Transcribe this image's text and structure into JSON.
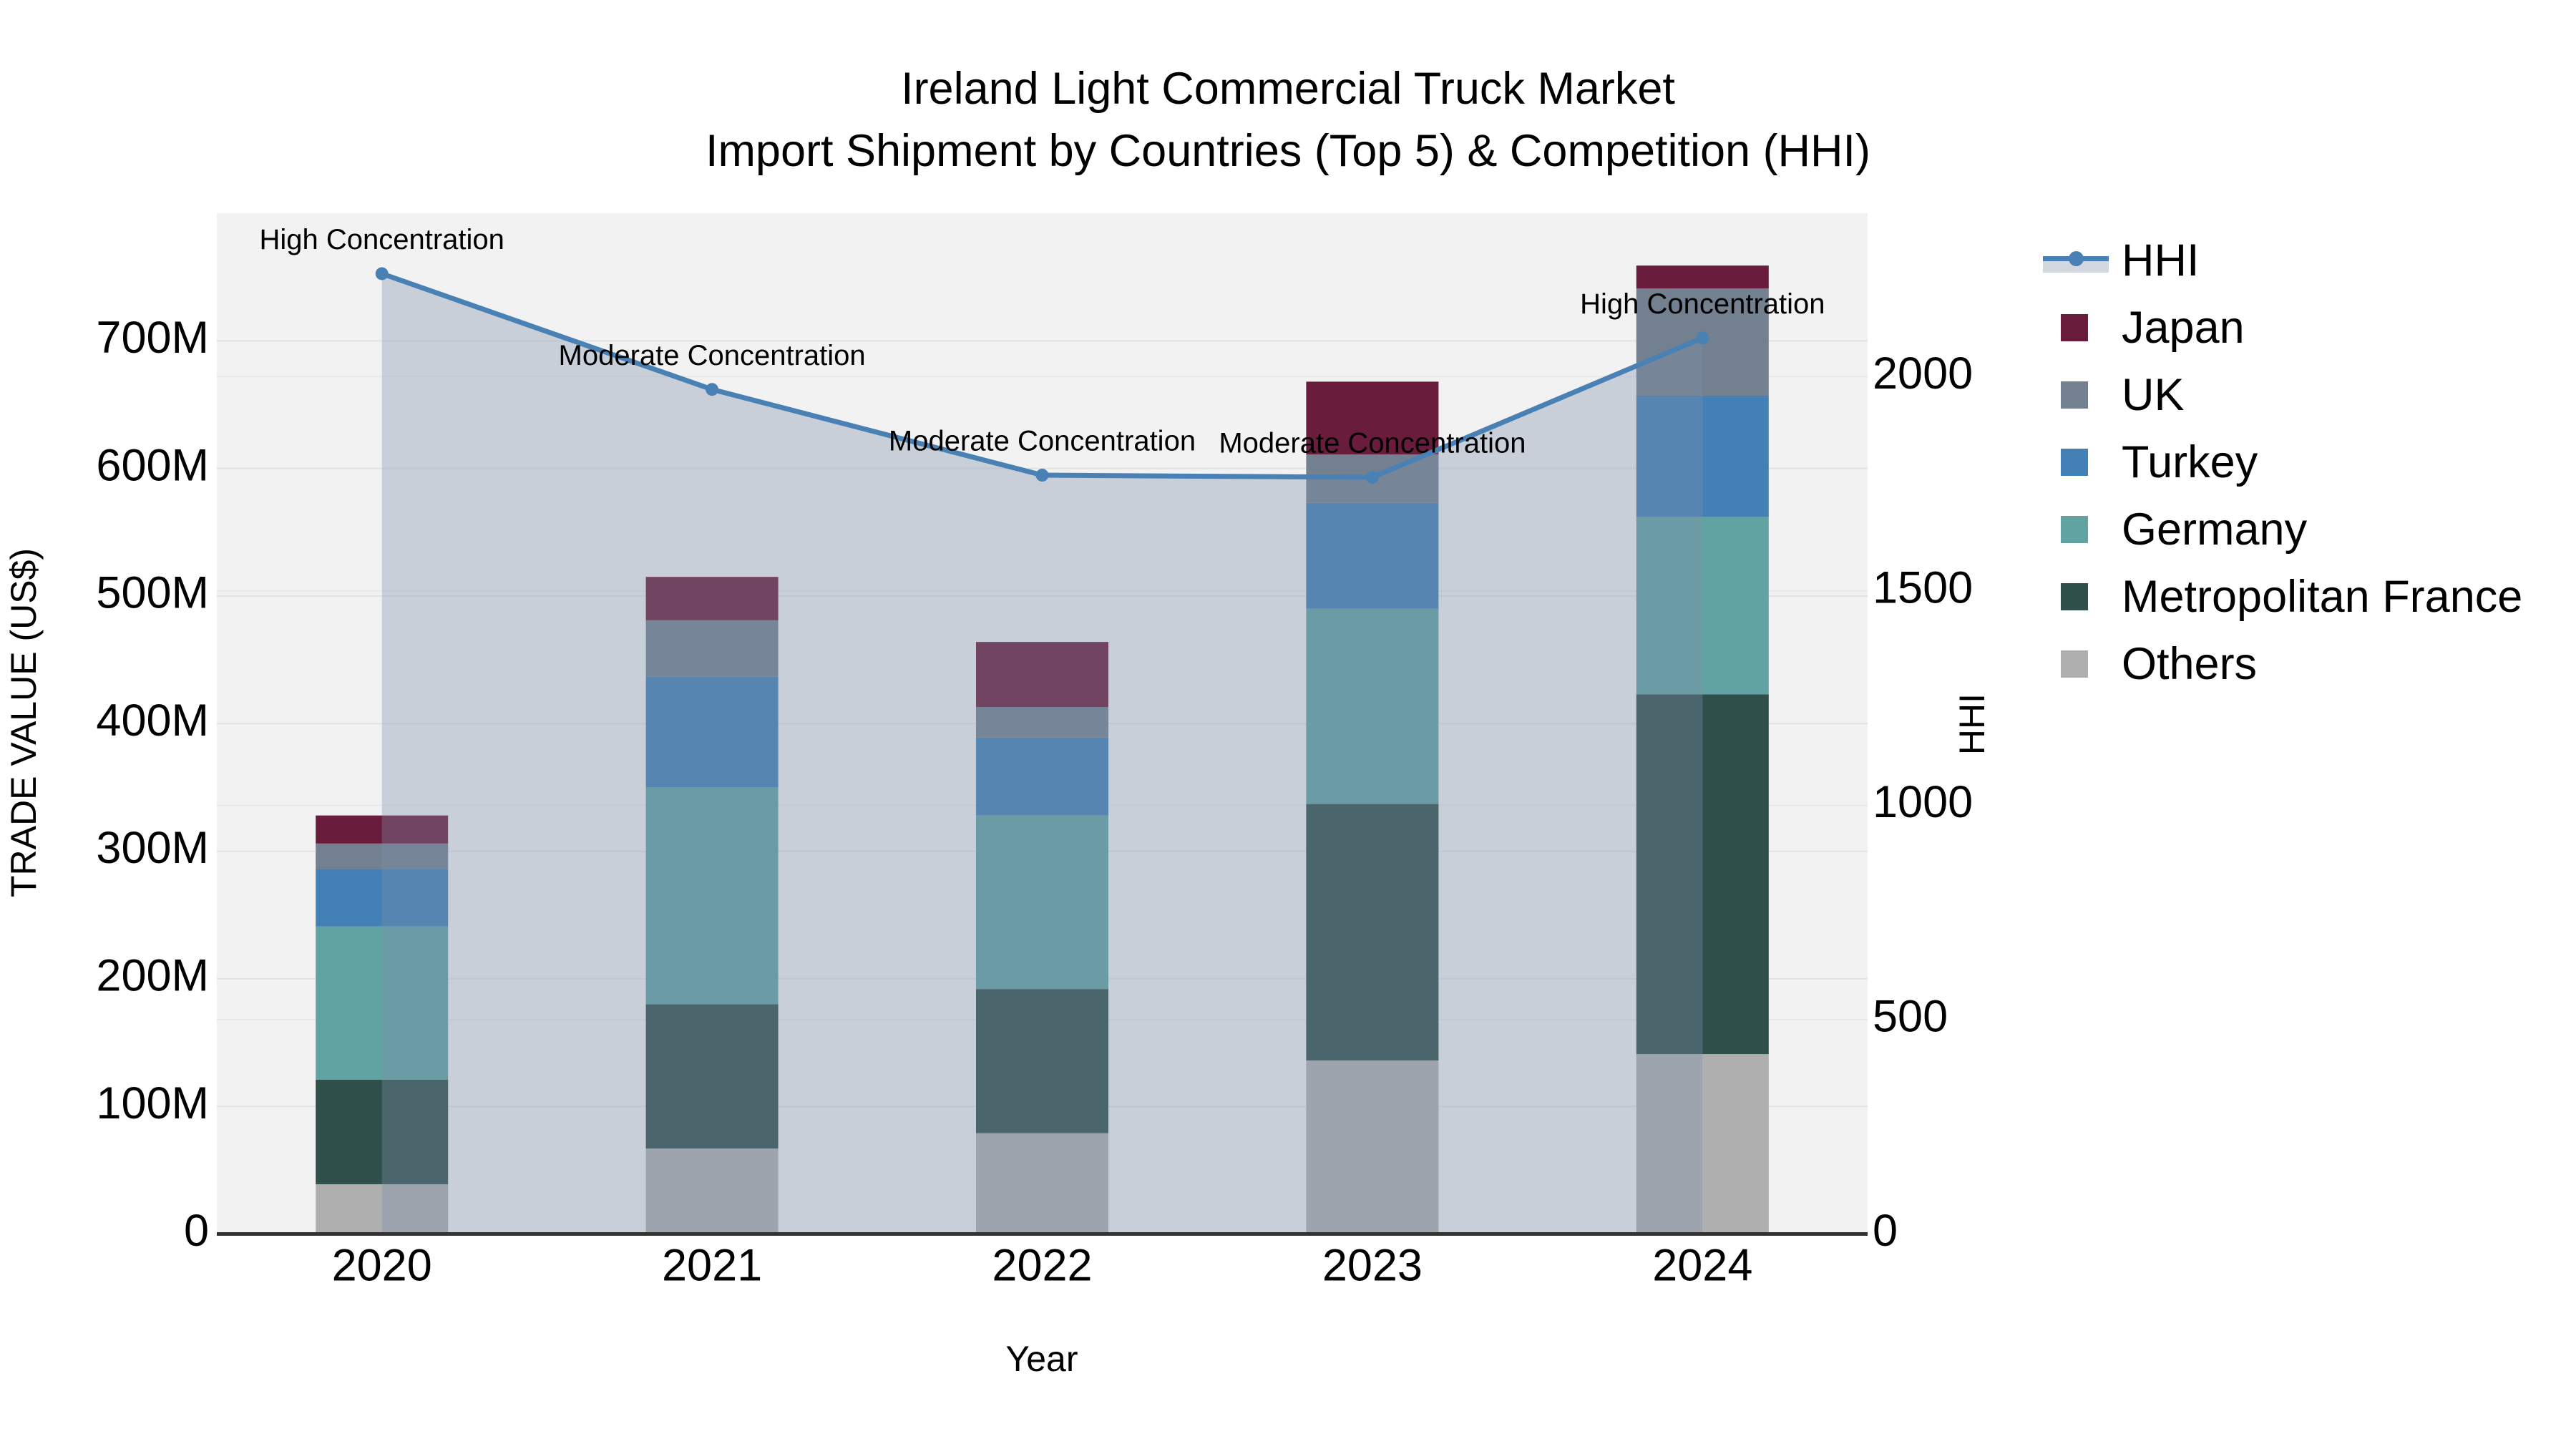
{
  "title": {
    "line1": "Ireland Light Commercial Truck Market",
    "line2": "Import Shipment by Countries (Top 5) & Competition (HHI)"
  },
  "axis_titles": {
    "x": "Year",
    "y_left": "TRADE VALUE (US$)",
    "y_right": "HHI"
  },
  "legend": [
    {
      "name": "HHI",
      "type": "line"
    },
    {
      "name": "Japan",
      "type": "swatch",
      "color": "#6a1c3c"
    },
    {
      "name": "UK",
      "type": "swatch",
      "color": "#72808f"
    },
    {
      "name": "Turkey",
      "type": "swatch",
      "color": "#4380b5"
    },
    {
      "name": "Germany",
      "type": "swatch",
      "color": "#61a3a3"
    },
    {
      "name": "Metropolitan France",
      "type": "swatch",
      "color": "#2f4f4b"
    },
    {
      "name": "Others",
      "type": "swatch",
      "color": "#afafaf"
    }
  ],
  "colors": {
    "hhi_line": "#4a81b5",
    "hhi_area": "rgba(127,142,168,0.35)",
    "plot_background": "#f2f2f2",
    "gridline_trade": "#e2e2e6",
    "gridline_hhi": "#e9e9ec",
    "axis_line": "#333333",
    "text": "#000000",
    "japan": "#6a1c3c",
    "uk": "#72808f",
    "turkey": "#4380b5",
    "germany": "#61a3a3",
    "metropolitan_france": "#2f4f4b",
    "others": "#afafaf"
  },
  "chart_data": {
    "type": "bar",
    "subtype": "stacked-bars-with-line-overlay",
    "categories": [
      "2020",
      "2021",
      "2022",
      "2023",
      "2024"
    ],
    "series": [
      {
        "name": "Others",
        "color": "#afafaf",
        "values": [
          39,
          67,
          79,
          136,
          141
        ]
      },
      {
        "name": "Metropolitan France",
        "color": "#2f4f4b",
        "values": [
          82,
          113,
          113,
          201,
          282
        ]
      },
      {
        "name": "Germany",
        "color": "#61a3a3",
        "values": [
          120,
          170,
          136,
          153,
          139
        ]
      },
      {
        "name": "Turkey",
        "color": "#4380b5",
        "values": [
          45,
          87,
          61,
          83,
          95
        ]
      },
      {
        "name": "UK",
        "color": "#72808f",
        "values": [
          20,
          44,
          24,
          38,
          84
        ]
      },
      {
        "name": "Japan",
        "color": "#6a1c3c",
        "values": [
          22,
          34,
          51,
          57,
          18
        ]
      }
    ],
    "bar_totals_musd": [
      327,
      515,
      464,
      668,
      759
    ],
    "line_series": {
      "name": "HHI",
      "color": "#4a81b5",
      "has_area_fill": true,
      "values": [
        2240,
        1970,
        1770,
        1765,
        2090
      ]
    },
    "annotations": [
      {
        "category": "2020",
        "text": "High Concentration"
      },
      {
        "category": "2021",
        "text": "Moderate Concentration"
      },
      {
        "category": "2022",
        "text": "Moderate Concentration"
      },
      {
        "category": "2023",
        "text": "Moderate Concentration"
      },
      {
        "category": "2024",
        "text": "High Concentration"
      }
    ],
    "title": "Ireland Light Commercial Truck Market Import Shipment by Countries (Top 5) & Competition (HHI)",
    "xlabel": "Year",
    "ylabel_left": "TRADE VALUE (US$)",
    "ylabel_right": "HHI",
    "y_left_axis": {
      "unit": "M",
      "tick_labels": [
        "0",
        "100M",
        "200M",
        "300M",
        "400M",
        "500M",
        "600M",
        "700M"
      ],
      "tick_values": [
        0,
        100,
        200,
        300,
        400,
        500,
        600,
        700
      ],
      "range": [
        0,
        800
      ]
    },
    "y_right_axis": {
      "tick_labels": [
        "0",
        "500",
        "1000",
        "1500",
        "2000"
      ],
      "tick_values": [
        0,
        500,
        1000,
        1500,
        2000
      ],
      "range": [
        0,
        2381
      ]
    },
    "grid": true,
    "legend_position": "right-outside"
  }
}
